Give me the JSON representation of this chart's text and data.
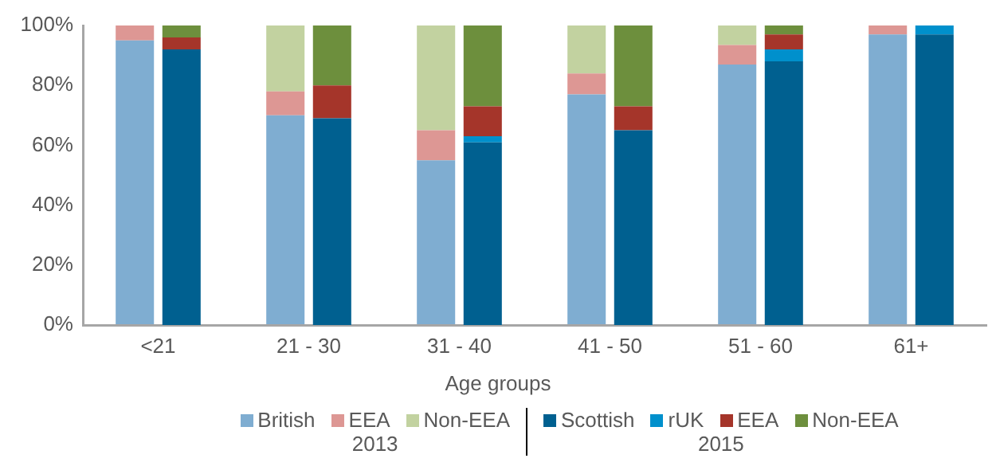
{
  "chart_data": [
    {
      "type": "bar",
      "stacked": true,
      "xlabel": "Age groups",
      "legend_title": "2013",
      "categories": [
        "<21",
        "21 - 30",
        "31 - 40",
        "41 - 50",
        "51 - 60",
        "61+"
      ],
      "ylim": [
        0,
        100
      ],
      "yticks": [
        {
          "value": 0,
          "label": "0%"
        },
        {
          "value": 20,
          "label": "20%"
        },
        {
          "value": 40,
          "label": "40%"
        },
        {
          "value": 60,
          "label": "60%"
        },
        {
          "value": 80,
          "label": "80%"
        },
        {
          "value": 100,
          "label": "100%"
        }
      ],
      "legend": "bottom",
      "grid": false,
      "series": [
        {
          "name": "British",
          "color": "#7fadd1",
          "values": [
            95,
            70,
            55,
            77,
            87,
            97
          ]
        },
        {
          "name": "EEA",
          "color": "#dd9794",
          "values": [
            5,
            8,
            10,
            7,
            6.5,
            3
          ]
        },
        {
          "name": "Non-EEA",
          "color": "#c2d2a0",
          "values": [
            0,
            22,
            35,
            16,
            6.5,
            0
          ]
        }
      ]
    },
    {
      "type": "bar",
      "stacked": true,
      "legend_title": "2015",
      "categories": [
        null,
        null,
        null,
        null,
        null,
        null
      ],
      "ylim": [
        0,
        100
      ],
      "legend": "bottom",
      "series": [
        {
          "name": "Scottish",
          "color": "#006090",
          "values": [
            92,
            69,
            61,
            65,
            88,
            97
          ]
        },
        {
          "name": "rUK",
          "color": "#0090cc",
          "values": [
            0,
            0,
            2,
            0,
            4,
            3
          ]
        },
        {
          "name": "EEA",
          "color": "#a5352a",
          "values": [
            4,
            11,
            10,
            8,
            5,
            0
          ]
        },
        {
          "name": "Non-EEA",
          "color": "#6d8f3d",
          "values": [
            4,
            20,
            27,
            27,
            3,
            0
          ]
        }
      ]
    }
  ]
}
